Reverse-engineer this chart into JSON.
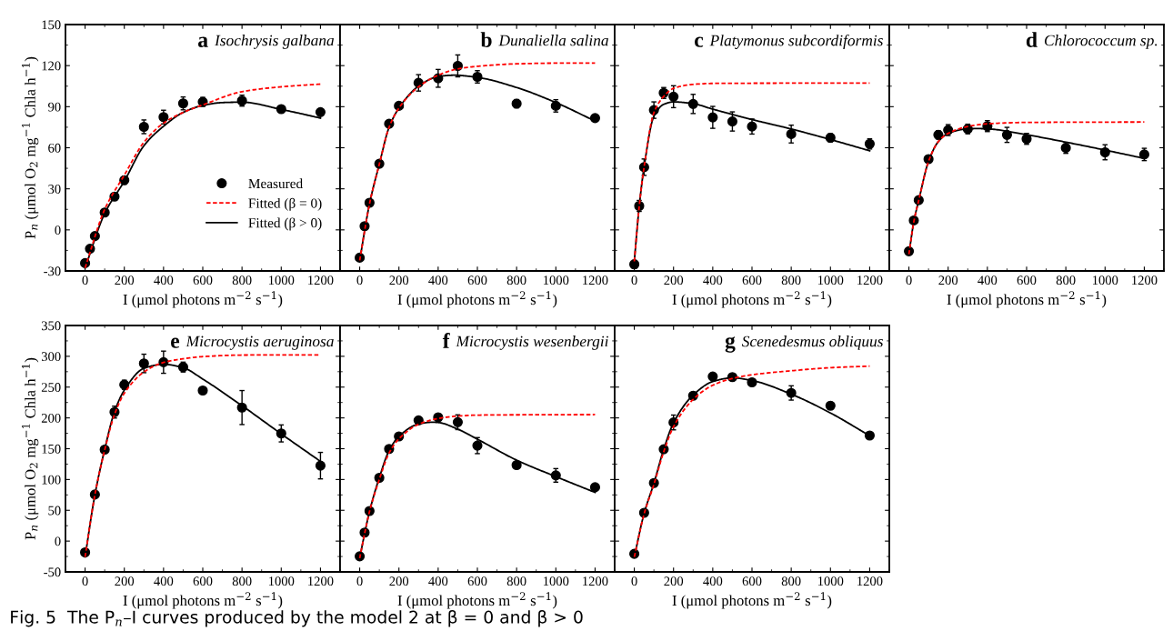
{
  "chart_data": [
    {
      "type": "scatter",
      "title": "a Isochrysis galbana",
      "xlabel": "I (μmol photons m$^{−2}$ s$^{−1}$)",
      "ylabel": "P$_{n}$ (μmol O$_{2}$ mg$^{−1}$ Chla h$^{−1}$)",
      "xlim": [
        -100,
        1300
      ],
      "xticks": [
        0,
        200,
        400,
        600,
        800,
        1000,
        1200
      ],
      "ylim": [
        -30,
        150
      ],
      "yticks": [
        -30,
        0,
        30,
        60,
        90,
        120,
        150
      ],
      "legend": "center right",
      "series": [
        {
          "name": "Measured",
          "type": "scatter",
          "color": "#000000",
          "marker": "circle",
          "x": [
            0,
            25,
            50,
            100,
            150,
            200,
            300,
            400,
            500,
            600,
            800,
            1000,
            1200
          ],
          "values": [
            -24.3,
            -13.8,
            -4.5,
            12.7,
            24.3,
            36.3,
            75.3,
            82.4,
            92.4,
            93.5,
            94.4,
            88.2,
            86
          ],
          "errors": [
            null,
            null,
            null,
            null,
            null,
            3,
            5,
            5,
            4.7,
            3.3,
            4,
            null,
            null
          ]
        },
        {
          "name": "Fitted (β = 0)",
          "type": "line",
          "color": "#ff0000",
          "marker": "none",
          "line_style": "dashed",
          "x": [
            0,
            100,
            200,
            300,
            400,
            500,
            600,
            800,
            1000,
            1200
          ],
          "values": [
            -27.8,
            15,
            40,
            64,
            78,
            85.8,
            91.3,
            101,
            104.5,
            106.5
          ]
        },
        {
          "name": "Fitted (β > 0)",
          "type": "line",
          "color": "#000000",
          "marker": "none",
          "line_style": "solid",
          "x": [
            0,
            100,
            200,
            300,
            400,
            500,
            600,
            700,
            800,
            1000,
            1200
          ],
          "values": [
            -27.8,
            12,
            35.6,
            61.5,
            75.7,
            85.8,
            90.9,
            93,
            93.3,
            88,
            81.7
          ]
        }
      ]
    },
    {
      "type": "scatter",
      "title": "b Dunaliella salina",
      "xlabel": "I (μmol photons m$^{−2}$ s$^{−1}$)",
      "xlim": [
        -100,
        1300
      ],
      "xticks": [
        0,
        200,
        400,
        600,
        800,
        1000,
        1200
      ],
      "ylim": [
        -30,
        150
      ],
      "yticks": [
        -30,
        0,
        30,
        60,
        90,
        120,
        150
      ],
      "tick_labels": "x",
      "series": [
        {
          "type": "scatter",
          "color": "#000000",
          "marker": "circle",
          "x": [
            0,
            25,
            50,
            100,
            150,
            200,
            300,
            400,
            500,
            600,
            800,
            1000,
            1200
          ],
          "values": [
            -20.3,
            2.7,
            19.8,
            48.3,
            77.5,
            90.6,
            107.4,
            110.7,
            119.8,
            111.8,
            92.2,
            90.6,
            81.7
          ],
          "errors": [
            null,
            null,
            null,
            null,
            null,
            null,
            6,
            6.5,
            8,
            4.5,
            3,
            4.5,
            null
          ]
        },
        {
          "type": "line",
          "color": "#ff0000",
          "marker": "none",
          "line_style": "dashed",
          "x": [
            0,
            50,
            100,
            150,
            200,
            300,
            400,
            500,
            600,
            800,
            1000,
            1200
          ],
          "values": [
            -22.3,
            19,
            48,
            75,
            89,
            104.5,
            113,
            117.6,
            119.5,
            121.3,
            121.8,
            121.8
          ]
        },
        {
          "type": "line",
          "color": "#000000",
          "marker": "none",
          "line_style": "solid",
          "x": [
            0,
            50,
            100,
            150,
            200,
            300,
            400,
            480,
            600,
            800,
            1000,
            1200
          ],
          "values": [
            -22.3,
            19,
            48,
            75,
            89,
            105,
            112,
            113,
            111.4,
            104,
            93,
            79.5
          ]
        }
      ]
    },
    {
      "type": "scatter",
      "title": "c Platymonus subcordiformis",
      "xlabel": "I (μmol photons m$^{−2}$ s$^{−1}$)",
      "xlim": [
        -100,
        1300
      ],
      "xticks": [
        0,
        200,
        400,
        600,
        800,
        1000,
        1200
      ],
      "ylim": [
        -30,
        150
      ],
      "yticks": [
        -30,
        0,
        30,
        60,
        90,
        120,
        150
      ],
      "tick_labels": "x",
      "series": [
        {
          "type": "scatter",
          "color": "#000000",
          "marker": "circle",
          "x": [
            0,
            25,
            50,
            100,
            150,
            200,
            300,
            400,
            500,
            600,
            800,
            1000,
            1200
          ],
          "values": [
            -25.2,
            17.5,
            45.8,
            87.5,
            100,
            97.3,
            92,
            82.2,
            79.2,
            75.5,
            70,
            67.3,
            62.8
          ],
          "errors": [
            3,
            4,
            6,
            6,
            4,
            8,
            7,
            8,
            7,
            5.5,
            6.5,
            3,
            3.7
          ]
        },
        {
          "type": "line",
          "color": "#ff0000",
          "marker": "none",
          "line_style": "dashed",
          "x": [
            0,
            25,
            50,
            100,
            150,
            200,
            300,
            400,
            800,
            1200
          ],
          "values": [
            -23,
            17,
            46,
            85.6,
            97.5,
            103.4,
            106.3,
            107,
            107.2,
            107.3
          ]
        },
        {
          "type": "line",
          "color": "#000000",
          "marker": "none",
          "line_style": "solid",
          "x": [
            0,
            25,
            50,
            100,
            150,
            200,
            300,
            400,
            600,
            800,
            1000,
            1200
          ],
          "values": [
            -23,
            17,
            46,
            83,
            91.7,
            93.5,
            92.2,
            88.2,
            80.6,
            73.7,
            66,
            57.8
          ]
        }
      ]
    },
    {
      "type": "scatter",
      "title": "d Chlorococcum sp.",
      "xlabel": "I (μmol photons m$^{−2}$ s$^{−1}$)",
      "xlim": [
        -100,
        1300
      ],
      "xticks": [
        0,
        200,
        400,
        600,
        800,
        1000,
        1200
      ],
      "ylim": [
        -30,
        150
      ],
      "yticks": [
        -30,
        0,
        30,
        60,
        90,
        120,
        150
      ],
      "tick_labels": "x",
      "series": [
        {
          "type": "scatter",
          "color": "#000000",
          "marker": "circle",
          "x": [
            0,
            25,
            50,
            100,
            150,
            200,
            300,
            400,
            500,
            600,
            800,
            1000,
            1200
          ],
          "values": [
            -15.6,
            6.9,
            21.7,
            51.7,
            69.4,
            72.9,
            73.7,
            75.8,
            69.4,
            66.5,
            59.9,
            56.7,
            55.1
          ],
          "errors": [
            2,
            null,
            null,
            2,
            3,
            4,
            3.5,
            4,
            5.5,
            4,
            4,
            5.5,
            4.5
          ]
        },
        {
          "type": "line",
          "color": "#ff0000",
          "marker": "none",
          "line_style": "dashed",
          "x": [
            0,
            25,
            50,
            100,
            150,
            200,
            300,
            400,
            600,
            1200
          ],
          "values": [
            -17.8,
            6,
            21.5,
            50,
            64.5,
            70.5,
            75.5,
            77.5,
            78.5,
            78.8
          ]
        },
        {
          "type": "line",
          "color": "#000000",
          "marker": "none",
          "line_style": "solid",
          "x": [
            0,
            25,
            50,
            100,
            150,
            200,
            300,
            350,
            400,
            600,
            800,
            1000,
            1200
          ],
          "values": [
            -17.8,
            6,
            21.5,
            50,
            64.5,
            70.5,
            73.8,
            74,
            73.8,
            69.5,
            64.1,
            58.3,
            52.2
          ]
        }
      ]
    },
    {
      "type": "scatter",
      "title": "e Microcystis aeruginosa",
      "xlabel": "I (μmol photons m$^{−2}$ s$^{−1}$)",
      "ylabel": "P$_{n}$ (μmol O$_{2}$ mg$^{−1}$ Chla h$^{−1}$)",
      "xlim": [
        -100,
        1300
      ],
      "xticks": [
        0,
        200,
        400,
        600,
        800,
        1000,
        1200
      ],
      "ylim": [
        -50,
        350
      ],
      "yticks": [
        -50,
        0,
        50,
        100,
        150,
        200,
        250,
        300,
        350
      ],
      "series": [
        {
          "type": "scatter",
          "color": "#000000",
          "marker": "circle",
          "x": [
            0,
            50,
            100,
            150,
            200,
            300,
            400,
            500,
            600,
            800,
            1000,
            1200
          ],
          "values": [
            -18.3,
            75.6,
            148.6,
            209.4,
            253.8,
            288.4,
            290.4,
            282.5,
            244.4,
            216.8,
            174.8,
            122.5
          ],
          "errors": [
            null,
            null,
            null,
            9.6,
            7.4,
            15,
            18,
            8,
            5,
            27.6,
            13.8,
            21.5
          ]
        },
        {
          "type": "line",
          "color": "#ff0000",
          "marker": "none",
          "line_style": "dashed",
          "x": [
            0,
            50,
            100,
            150,
            200,
            300,
            400,
            500,
            600,
            800,
            1000,
            1200
          ],
          "values": [
            -25.7,
            75,
            148,
            205.4,
            240,
            274.6,
            290,
            296,
            299.5,
            302,
            302.3,
            302.3
          ]
        },
        {
          "type": "line",
          "color": "#000000",
          "marker": "none",
          "line_style": "solid",
          "x": [
            0,
            50,
            100,
            150,
            200,
            300,
            400,
            500,
            600,
            800,
            1000,
            1200
          ],
          "values": [
            -25.7,
            75,
            149,
            210,
            245,
            280.5,
            287,
            281.5,
            263,
            219.8,
            174,
            129.4
          ]
        }
      ]
    },
    {
      "type": "scatter",
      "title": "f Microcystis wesenbergii",
      "xlabel": "I (μmol photons m$^{−2}$ s$^{−1}$)",
      "xlim": [
        -100,
        1300
      ],
      "xticks": [
        0,
        200,
        400,
        600,
        800,
        1000,
        1200
      ],
      "ylim": [
        -50,
        350
      ],
      "yticks": [
        -50,
        0,
        50,
        100,
        150,
        200,
        250,
        300,
        350
      ],
      "tick_labels": "x",
      "series": [
        {
          "type": "scatter",
          "color": "#000000",
          "marker": "circle",
          "x": [
            0,
            25,
            50,
            100,
            150,
            200,
            300,
            400,
            500,
            600,
            800,
            1000,
            1200
          ],
          "values": [
            -24.7,
            13.8,
            48.9,
            102.7,
            149.6,
            169.9,
            196,
            201,
            193,
            155,
            123.5,
            106.7,
            87.4
          ],
          "errors": [
            null,
            null,
            null,
            null,
            null,
            5,
            4,
            3,
            12,
            13,
            5,
            11,
            null
          ]
        },
        {
          "type": "line",
          "color": "#ff0000",
          "marker": "none",
          "line_style": "dashed",
          "x": [
            0,
            25,
            50,
            100,
            150,
            200,
            300,
            400,
            500,
            600,
            800,
            1200
          ],
          "values": [
            -27.7,
            12,
            48,
            100,
            143,
            166,
            189.6,
            199,
            203,
            204.5,
            205,
            205.4
          ]
        },
        {
          "type": "line",
          "color": "#000000",
          "marker": "none",
          "line_style": "solid",
          "x": [
            0,
            25,
            50,
            100,
            150,
            200,
            300,
            370,
            400,
            500,
            600,
            800,
            1000,
            1200
          ],
          "values": [
            -27.7,
            12,
            48,
            103,
            147,
            170,
            190,
            193,
            192.5,
            181.7,
            165.4,
            131.4,
            104.7,
            79
          ]
        }
      ]
    },
    {
      "type": "scatter",
      "title": "g Scenedesmus obliquus",
      "xlabel": "I (μmol photons m$^{−2}$ s$^{−1}$)",
      "xlim": [
        -100,
        1300
      ],
      "xticks": [
        0,
        200,
        400,
        600,
        800,
        1000,
        1200
      ],
      "ylim": [
        -50,
        350
      ],
      "yticks": [
        -50,
        0,
        50,
        100,
        150,
        200,
        250,
        300,
        350
      ],
      "tick_labels": "x",
      "annotations": [
        "Fig. 5  The P$_{n}$–I curves produced by the model 2 at β = 0 and β > 0"
      ],
      "series": [
        {
          "type": "scatter",
          "color": "#000000",
          "marker": "circle",
          "x": [
            0,
            50,
            100,
            150,
            200,
            300,
            400,
            500,
            600,
            800,
            1000,
            1200
          ],
          "values": [
            -20.7,
            45.9,
            94.3,
            149.1,
            192.6,
            236,
            267.2,
            266.2,
            257.8,
            240.5,
            219.8,
            171.4
          ],
          "errors": [
            null,
            null,
            null,
            null,
            12,
            5,
            4,
            3,
            3,
            11.6,
            5.4,
            null
          ]
        },
        {
          "type": "line",
          "color": "#ff0000",
          "marker": "none",
          "line_style": "dashed",
          "x": [
            0,
            50,
            100,
            150,
            200,
            300,
            400,
            500,
            600,
            800,
            1000,
            1200
          ],
          "values": [
            -25.7,
            44,
            92,
            145,
            185.7,
            230,
            253,
            264,
            270,
            276.5,
            281.5,
            284
          ]
        },
        {
          "type": "line",
          "color": "#000000",
          "marker": "none",
          "line_style": "solid",
          "x": [
            0,
            50,
            100,
            150,
            200,
            300,
            400,
            500,
            600,
            800,
            1000,
            1200
          ],
          "values": [
            -25.7,
            45,
            94,
            149,
            192,
            237,
            259,
            265,
            260.7,
            238.5,
            208,
            171
          ]
        }
      ]
    }
  ]
}
